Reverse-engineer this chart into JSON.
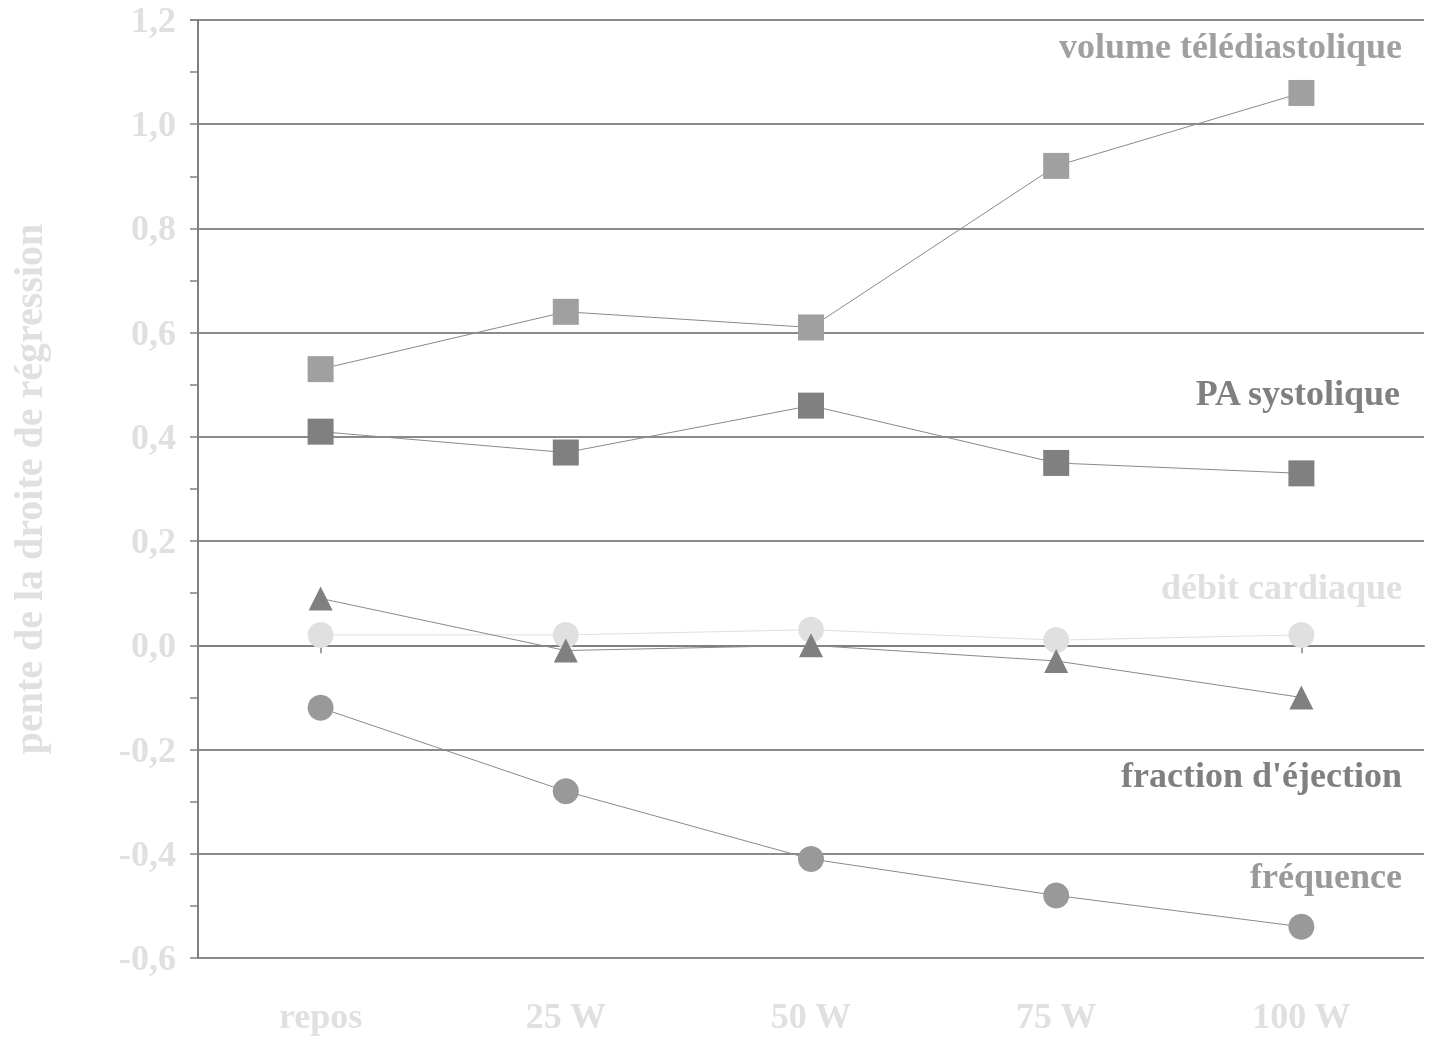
{
  "chart_data": {
    "type": "line",
    "ylabel": "pente de la droite de régression",
    "categories": [
      "repos",
      "25 W",
      "50 W",
      "75 W",
      "100 W"
    ],
    "series": [
      {
        "name": "volume télédiastolique",
        "color": "#a0a0a0",
        "marker": "square",
        "values": [
          0.53,
          0.64,
          0.61,
          0.92,
          1.06
        ]
      },
      {
        "name": "PA systolique",
        "color": "#808080",
        "marker": "square",
        "values": [
          0.41,
          0.37,
          0.46,
          0.35,
          0.33
        ]
      },
      {
        "name": "débit cardiaque",
        "color": "#e0e0e0",
        "marker": "circle",
        "values": [
          0.02,
          0.02,
          0.03,
          0.01,
          0.02
        ]
      },
      {
        "name": "fraction d'éjection",
        "color": "#808080",
        "marker": "triangle",
        "values": [
          0.09,
          -0.01,
          0.0,
          -0.03,
          -0.1
        ]
      },
      {
        "name": "fréquence",
        "color": "#999999",
        "marker": "circle",
        "values": [
          -0.12,
          -0.28,
          -0.41,
          -0.48,
          -0.54
        ]
      }
    ],
    "ylim": [
      -0.6,
      1.2
    ],
    "yticks": [
      {
        "value": -0.6,
        "label": "-0,6"
      },
      {
        "value": -0.5,
        "label": null
      },
      {
        "value": -0.4,
        "label": "-0,4"
      },
      {
        "value": -0.3,
        "label": null
      },
      {
        "value": -0.2,
        "label": "-0,2"
      },
      {
        "value": -0.1,
        "label": null
      },
      {
        "value": 0,
        "label": "0,0"
      },
      {
        "value": 0.1,
        "label": null
      },
      {
        "value": 0.2,
        "label": "0,2"
      },
      {
        "value": 0.3,
        "label": null
      },
      {
        "value": 0.4,
        "label": "0,4"
      },
      {
        "value": 0.5,
        "label": null
      },
      {
        "value": 0.6,
        "label": "0,6"
      },
      {
        "value": 0.7,
        "label": null
      },
      {
        "value": 0.8,
        "label": "0,8"
      },
      {
        "value": 0.9,
        "label": null
      },
      {
        "value": 1.0,
        "label": "1,0"
      },
      {
        "value": 1.1,
        "label": null
      },
      {
        "value": 1.2,
        "label": "1,2"
      }
    ],
    "grid": "y",
    "legend": false,
    "line_style": "solid"
  }
}
